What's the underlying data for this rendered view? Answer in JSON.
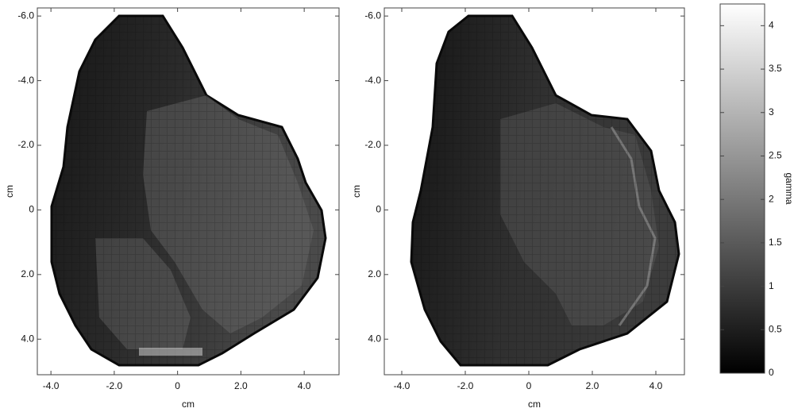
{
  "chart_data": [
    {
      "type": "image",
      "xlabel": "cm",
      "ylabel": "cm",
      "xlim": [
        -4.43,
        5.1
      ],
      "ylim": [
        -6.25,
        5.1
      ],
      "yreverse": true,
      "xticks": [
        {
          "value": -4,
          "label": "-4.0"
        },
        {
          "value": -2,
          "label": "-2.0"
        },
        0,
        {
          "value": 2,
          "label": "2.0"
        },
        {
          "value": 4,
          "label": "4.0"
        }
      ],
      "yticks": [
        {
          "value": -6,
          "label": "-6.0"
        },
        {
          "value": -4,
          "label": "-4.0"
        },
        {
          "value": -2,
          "label": "-2.0"
        },
        0,
        {
          "value": 2,
          "label": "2.0"
        },
        {
          "value": 4,
          "label": "4.0"
        }
      ]
    },
    {
      "type": "image",
      "xlabel": "cm",
      "ylabel": "cm",
      "xlim": [
        -4.55,
        4.9
      ],
      "ylim": [
        -6.25,
        5.1
      ],
      "yreverse": true,
      "xticks": [
        {
          "value": -4,
          "label": "-4.0"
        },
        {
          "value": -2,
          "label": "-2.0"
        },
        0,
        {
          "value": 2,
          "label": "2.0"
        },
        {
          "value": 4,
          "label": "4.0"
        }
      ],
      "yticks": [
        {
          "value": -6,
          "label": "-6.0"
        },
        {
          "value": -4,
          "label": "-4.0"
        },
        {
          "value": -2,
          "label": "-2.0"
        },
        0,
        {
          "value": 2,
          "label": "2.0"
        },
        {
          "value": 4,
          "label": "4.0"
        }
      ]
    },
    {
      "type": "colorbar",
      "label": "gamma",
      "ylim": [
        0,
        4.25
      ],
      "yticks": [
        0,
        0.5,
        1,
        1.5,
        2,
        2.5,
        3,
        3.5,
        4
      ]
    }
  ]
}
